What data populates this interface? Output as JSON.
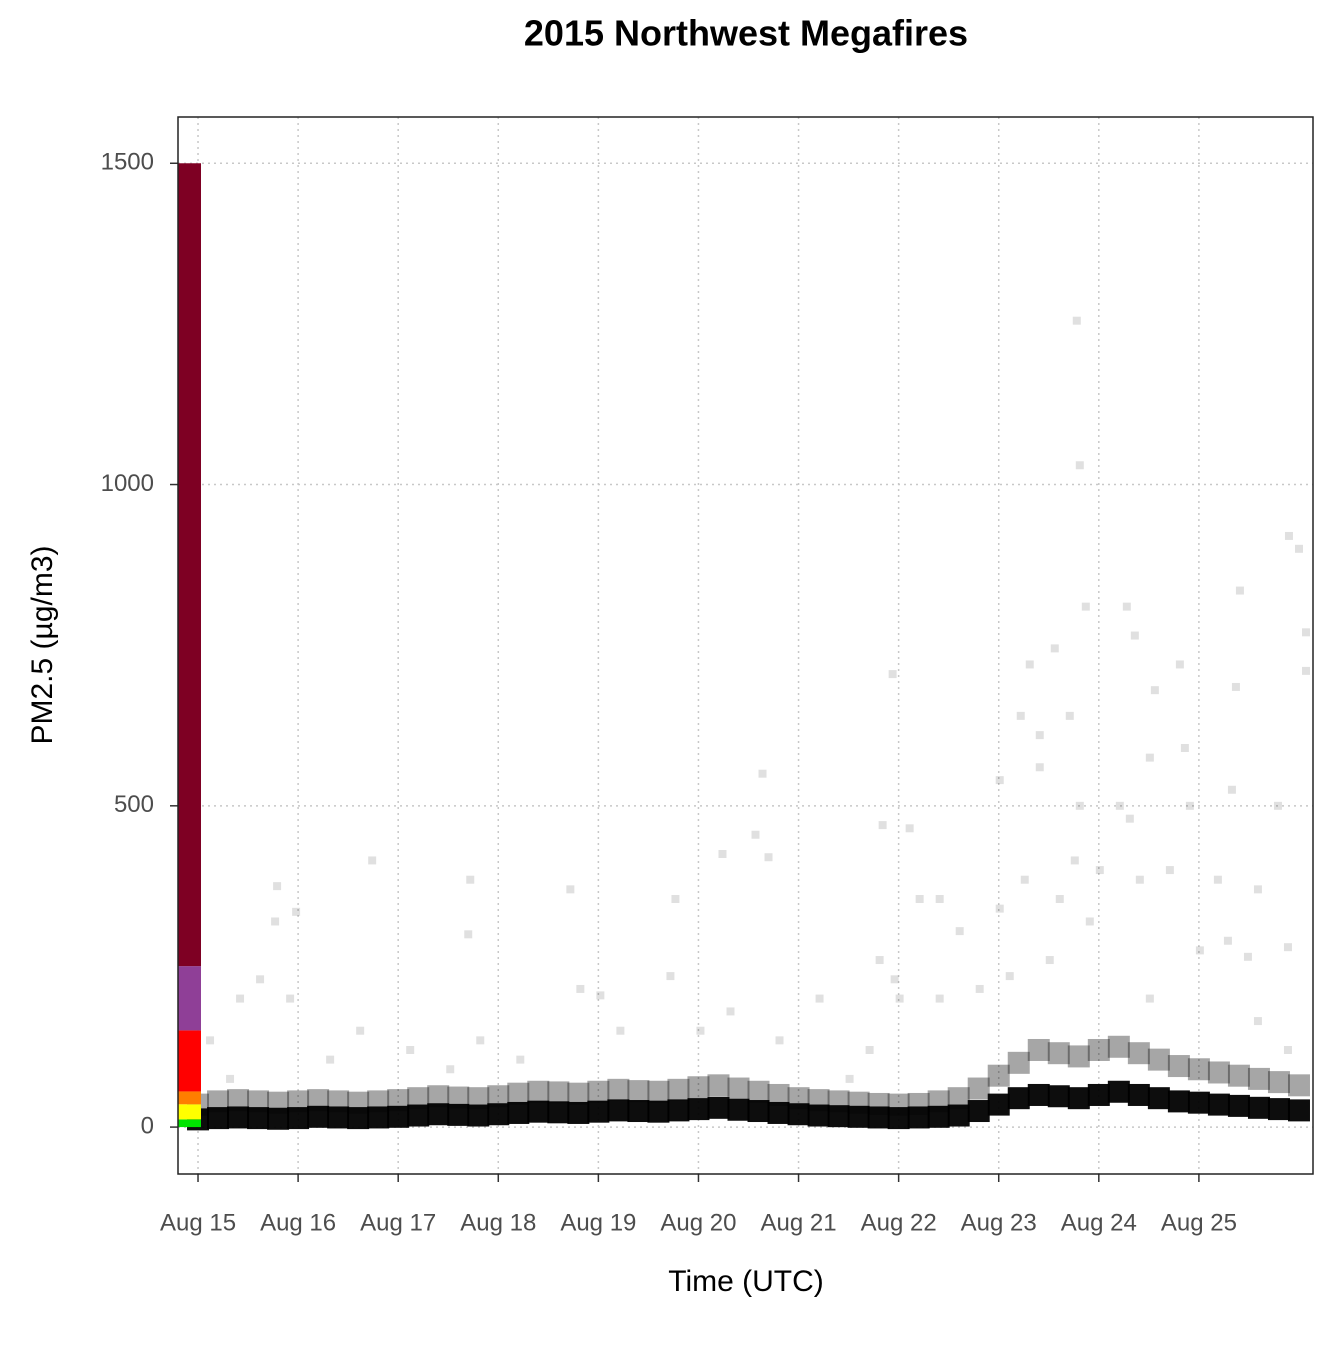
{
  "chart_data": {
    "type": "scatter",
    "title": "2015 Northwest Megafires",
    "x_label": "Time (UTC)",
    "y_label": "PM2.5 (µg/m3)",
    "xlim": [
      -0.2,
      11.14
    ],
    "ylim": [
      -73,
      1572
    ],
    "xticks": [
      {
        "value": 0,
        "label": "Aug 15"
      },
      {
        "value": 1,
        "label": "Aug 16"
      },
      {
        "value": 2,
        "label": "Aug 17"
      },
      {
        "value": 3,
        "label": "Aug 18"
      },
      {
        "value": 4,
        "label": "Aug 19"
      },
      {
        "value": 5,
        "label": "Aug 20"
      },
      {
        "value": 6,
        "label": "Aug 21"
      },
      {
        "value": 7,
        "label": "Aug 22"
      },
      {
        "value": 8,
        "label": "Aug 23"
      },
      {
        "value": 9,
        "label": "Aug 24"
      },
      {
        "value": 10,
        "label": "Aug 25"
      }
    ],
    "yticks": [
      0,
      500,
      1000,
      1500
    ],
    "grid": true,
    "aqi_breaks": [
      0,
      12,
      35.5,
      55.5,
      150.5,
      250.5,
      1500
    ],
    "aqi_colors": [
      "#00e400",
      "#ffff00",
      "#ff7e00",
      "#ff0000",
      "#8f3f97",
      "#7e0023"
    ],
    "series": [
      {
        "color": "#000000",
        "opacity": 0.35,
        "size": 22,
        "x": [
          0,
          0.2,
          0.4,
          0.6,
          0.8,
          1,
          1.2,
          1.4,
          1.6,
          1.8,
          2,
          2.2,
          2.4,
          2.6,
          2.8,
          3,
          3.2,
          3.4,
          3.6,
          3.8,
          4,
          4.2,
          4.4,
          4.6,
          4.8,
          5,
          5.2,
          5.4,
          5.6,
          5.8,
          6,
          6.2,
          6.4,
          6.6,
          6.8,
          7,
          7.2,
          7.4,
          7.6,
          7.8,
          8,
          8.2,
          8.4,
          8.6,
          8.8,
          9,
          9.2,
          9.4,
          9.6,
          9.8,
          10,
          10.2,
          10.4,
          10.6,
          10.8,
          11
        ],
        "values": [
          35,
          40,
          42,
          40,
          38,
          40,
          42,
          40,
          38,
          40,
          42,
          45,
          48,
          46,
          45,
          48,
          52,
          55,
          54,
          52,
          55,
          58,
          56,
          55,
          58,
          62,
          65,
          60,
          55,
          50,
          45,
          42,
          40,
          38,
          36,
          35,
          36,
          40,
          45,
          60,
          80,
          100,
          120,
          115,
          110,
          120,
          125,
          115,
          105,
          95,
          90,
          85,
          80,
          75,
          70,
          65
        ]
      },
      {
        "color": "#000000",
        "opacity": 0.95,
        "size": 22,
        "x": [
          0,
          0.2,
          0.4,
          0.6,
          0.8,
          1,
          1.2,
          1.4,
          1.6,
          1.8,
          2,
          2.2,
          2.4,
          2.6,
          2.8,
          3,
          3.2,
          3.4,
          3.6,
          3.8,
          4,
          4.2,
          4.4,
          4.6,
          4.8,
          5,
          5.2,
          5.4,
          5.6,
          5.8,
          6,
          6.2,
          6.4,
          6.6,
          6.8,
          7,
          7.2,
          7.4,
          7.6,
          7.8,
          8,
          8.2,
          8.4,
          8.6,
          8.8,
          9,
          9.2,
          9.4,
          9.6,
          9.8,
          10,
          10.2,
          10.4,
          10.6,
          10.8,
          11
        ],
        "values": [
          12,
          14,
          15,
          14,
          13,
          14,
          16,
          15,
          14,
          15,
          16,
          18,
          20,
          19,
          18,
          20,
          22,
          24,
          23,
          22,
          24,
          26,
          25,
          24,
          26,
          28,
          30,
          27,
          25,
          22,
          20,
          18,
          17,
          16,
          15,
          14,
          15,
          16,
          18,
          25,
          35,
          45,
          50,
          48,
          45,
          50,
          55,
          50,
          45,
          40,
          38,
          35,
          33,
          30,
          28,
          26
        ]
      },
      {
        "color": "#000000",
        "opacity": 0.12,
        "size": 8,
        "x": [
          0.77,
          0.79,
          0.98,
          1.74,
          2.72,
          2.7,
          3.72,
          4.77,
          5.24,
          5.64,
          5.7,
          5.57,
          6.94,
          6.84,
          8.22,
          8.31,
          8.78,
          8.81,
          8.87,
          9.28,
          9.36,
          9.56,
          9.81,
          10.9,
          11.0,
          11.07,
          11.07,
          10.41,
          10.37,
          10.79,
          8.81,
          9.21,
          9.91,
          8.01,
          8.41,
          8.56,
          8.71,
          8.41,
          9.51,
          9.31,
          9.86,
          10.33,
          9.01,
          8.76,
          10.19,
          10.29,
          10.89,
          10.49,
          10.59,
          7.11,
          7.01,
          7.21,
          7.41,
          7.61,
          8.01,
          8.26,
          8.61,
          8.91,
          9.41,
          9.71,
          10.01,
          8.51,
          7.81,
          8.11,
          7.41,
          9.51,
          10.59,
          10.89,
          0.42,
          0.62,
          0.92,
          1.62,
          2.12,
          2.82,
          3.22,
          3.82,
          4.02,
          4.72,
          5.02,
          5.32,
          5.81,
          6.21,
          6.51,
          6.71,
          6.81,
          6.96,
          4.22,
          2.52,
          1.32,
          0.12,
          0.32
        ],
        "values": [
          320,
          375,
          335,
          415,
          385,
          300,
          370,
          355,
          425,
          550,
          420,
          455,
          705,
          470,
          640,
          720,
          1255,
          1030,
          810,
          810,
          765,
          680,
          720,
          920,
          900,
          770,
          710,
          835,
          685,
          500,
          500,
          500,
          500,
          540,
          610,
          745,
          640,
          560,
          575,
          480,
          590,
          525,
          400,
          415,
          385,
          290,
          280,
          265,
          370,
          465,
          200,
          355,
          355,
          305,
          340,
          385,
          355,
          320,
          385,
          400,
          275,
          260,
          215,
          235,
          200,
          200,
          165,
          120,
          200,
          230,
          200,
          150,
          120,
          135,
          105,
          215,
          205,
          235,
          150,
          180,
          135,
          200,
          75,
          120,
          260,
          230,
          150,
          90,
          105,
          135,
          75
        ]
      }
    ]
  }
}
